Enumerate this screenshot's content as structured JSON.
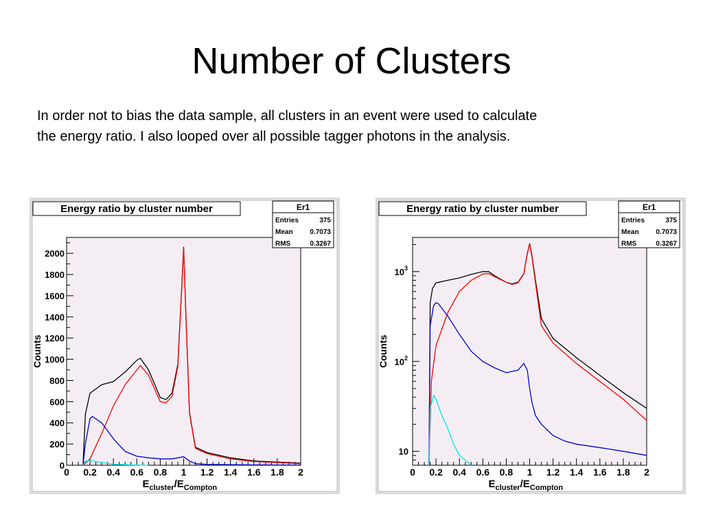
{
  "slide": {
    "title": "Number of Clusters",
    "body_line1": "In order not to bias the data sample, all clusters in an event were used to calculate",
    "body_line2": "the energy ratio.  I also looped over all possible tagger photons in the analysis."
  },
  "colors": {
    "black": "#000000",
    "red": "#ff0000",
    "blue": "#0000cc",
    "cyan": "#00e5ee",
    "pad": "#f4eef4",
    "frame": "#dedede"
  },
  "chart_data": [
    {
      "type": "line",
      "title": "Energy ratio by cluster number",
      "xlabel_main": "E",
      "xlabel_sub1": "cluster",
      "xlabel_slash": "/E",
      "xlabel_sub2": "Compton",
      "ylabel": "Counts",
      "xlim": [
        0,
        2
      ],
      "ylim": [
        0,
        2150
      ],
      "log_y": false,
      "x_ticks": [
        "0",
        "0.2",
        "0.4",
        "0.6",
        "0.8",
        "1",
        "1.2",
        "1.4",
        "1.6",
        "1.8",
        "2"
      ],
      "y_ticks": [
        "0",
        "200",
        "400",
        "600",
        "800",
        "1000",
        "1200",
        "1400",
        "1600",
        "1800",
        "2000"
      ],
      "y_tick_values": [
        0,
        200,
        400,
        600,
        800,
        1000,
        1200,
        1400,
        1600,
        1800,
        2000
      ],
      "stats": {
        "name": "Er1",
        "rows": [
          [
            "Entries",
            "375"
          ],
          [
            "Mean",
            "0.7073"
          ],
          [
            "RMS",
            "0.3267"
          ]
        ]
      },
      "series": [
        {
          "color": "#000000",
          "x": [
            0.14,
            0.16,
            0.2,
            0.3,
            0.4,
            0.5,
            0.6,
            0.63,
            0.7,
            0.8,
            0.85,
            0.9,
            0.95,
            0.98,
            1.0,
            1.02,
            1.05,
            1.1,
            1.2,
            1.4,
            1.6,
            1.8,
            2.0
          ],
          "y": [
            0,
            480,
            680,
            760,
            790,
            880,
            990,
            1010,
            900,
            640,
            620,
            680,
            950,
            1600,
            2060,
            1400,
            500,
            170,
            120,
            70,
            40,
            30,
            20
          ]
        },
        {
          "color": "#ff0000",
          "x": [
            0.14,
            0.2,
            0.3,
            0.4,
            0.5,
            0.6,
            0.63,
            0.7,
            0.8,
            0.85,
            0.9,
            0.95,
            0.98,
            1.0,
            1.02,
            1.05,
            1.1,
            1.2,
            1.4,
            1.6,
            1.8,
            2.0
          ],
          "y": [
            0,
            60,
            300,
            560,
            760,
            900,
            940,
            850,
            600,
            590,
            650,
            930,
            1590,
            2050,
            1390,
            490,
            160,
            110,
            60,
            35,
            25,
            15
          ]
        },
        {
          "color": "#0000cc",
          "x": [
            0.14,
            0.16,
            0.2,
            0.22,
            0.3,
            0.4,
            0.5,
            0.6,
            0.7,
            0.8,
            0.9,
            0.95,
            1.0,
            1.05,
            1.1,
            1.2,
            1.4,
            1.6,
            1.8,
            2.0
          ],
          "y": [
            0,
            200,
            440,
            460,
            400,
            250,
            130,
            85,
            70,
            60,
            60,
            70,
            80,
            40,
            15,
            8,
            5,
            3,
            2,
            1
          ]
        },
        {
          "color": "#00e5ee",
          "x": [
            0.14,
            0.16,
            0.2,
            0.3,
            0.4,
            0.5,
            0.6,
            0.7
          ],
          "y": [
            0,
            40,
            45,
            25,
            10,
            5,
            2,
            0
          ]
        }
      ]
    },
    {
      "type": "line",
      "title": "Energy ratio by cluster number",
      "xlabel_main": "E",
      "xlabel_sub1": "cluster",
      "xlabel_slash": "/E",
      "xlabel_sub2": "Compton",
      "ylabel": "Counts",
      "xlim": [
        0,
        2
      ],
      "ylim": [
        7,
        2400
      ],
      "log_y": true,
      "x_ticks": [
        "0",
        "0.2",
        "0.4",
        "0.6",
        "0.8",
        "1",
        "1.2",
        "1.4",
        "1.6",
        "1.8",
        "2"
      ],
      "y_ticks": [
        "10",
        "10",
        "10"
      ],
      "y_tick_sups": [
        "",
        "2",
        "3"
      ],
      "y_tick_values": [
        10,
        100,
        1000
      ],
      "stats": {
        "name": "Er1",
        "rows": [
          [
            "Entries",
            "375"
          ],
          [
            "Mean",
            "0.7073"
          ],
          [
            "RMS",
            "0.3267"
          ]
        ]
      },
      "series": [
        {
          "color": "#000000",
          "x": [
            0.14,
            0.15,
            0.17,
            0.2,
            0.3,
            0.4,
            0.5,
            0.6,
            0.65,
            0.7,
            0.8,
            0.85,
            0.9,
            0.95,
            0.98,
            1.0,
            1.02,
            1.05,
            1.1,
            1.2,
            1.4,
            1.6,
            1.8,
            2.0
          ],
          "y": [
            7,
            450,
            650,
            750,
            800,
            850,
            930,
            1000,
            1000,
            900,
            760,
            730,
            760,
            950,
            1600,
            2060,
            1500,
            800,
            300,
            180,
            110,
            70,
            45,
            30
          ]
        },
        {
          "color": "#ff0000",
          "x": [
            0.14,
            0.16,
            0.2,
            0.3,
            0.4,
            0.5,
            0.6,
            0.65,
            0.7,
            0.8,
            0.85,
            0.9,
            0.95,
            0.98,
            1.0,
            1.02,
            1.05,
            1.1,
            1.2,
            1.4,
            1.6,
            1.8,
            2.0
          ],
          "y": [
            7,
            60,
            150,
            350,
            600,
            800,
            940,
            950,
            880,
            760,
            720,
            750,
            940,
            1580,
            2030,
            1450,
            750,
            250,
            160,
            95,
            60,
            38,
            22
          ]
        },
        {
          "color": "#0000cc",
          "x": [
            0.14,
            0.15,
            0.18,
            0.2,
            0.22,
            0.3,
            0.4,
            0.5,
            0.6,
            0.7,
            0.8,
            0.9,
            0.95,
            0.98,
            1.0,
            1.02,
            1.05,
            1.1,
            1.2,
            1.3,
            1.4,
            1.6,
            1.8,
            2.0
          ],
          "y": [
            7,
            250,
            420,
            450,
            440,
            320,
            200,
            130,
            100,
            85,
            75,
            80,
            95,
            80,
            50,
            35,
            25,
            20,
            15,
            13,
            12,
            11,
            10,
            9
          ]
        },
        {
          "color": "#00e5ee",
          "x": [
            0.14,
            0.15,
            0.18,
            0.2,
            0.25,
            0.3,
            0.35,
            0.4,
            0.45,
            0.5
          ],
          "y": [
            7,
            30,
            42,
            38,
            25,
            18,
            12,
            9,
            8,
            7
          ]
        }
      ]
    }
  ]
}
